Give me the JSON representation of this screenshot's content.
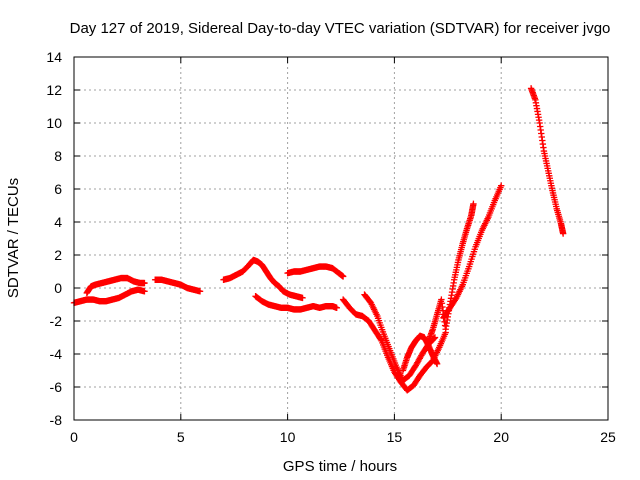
{
  "chart_data": {
    "type": "scatter",
    "title": "Day 127 of 2019, Sidereal Day-to-day VTEC variation (SDTVAR) for receiver jvgo",
    "xlabel": "GPS time / hours",
    "ylabel": "SDTVAR / TECUs",
    "xlim": [
      0,
      25
    ],
    "ylim": [
      -8,
      14
    ],
    "xticks": [
      "0",
      "5",
      "10",
      "15",
      "20",
      "25"
    ],
    "yticks": [
      "-8",
      "-6",
      "-4",
      "-2",
      "0",
      "2",
      "4",
      "6",
      "8",
      "10",
      "12",
      "14"
    ],
    "grid": true,
    "marker": "+",
    "color": "#ff0000",
    "series": [
      {
        "x": [
          0.0,
          0.3,
          0.6,
          0.9,
          1.2,
          1.5,
          1.8,
          2.1,
          2.4,
          2.7,
          3.0,
          3.3
        ],
        "y": [
          -0.9,
          -0.8,
          -0.7,
          -0.7,
          -0.8,
          -0.8,
          -0.7,
          -0.6,
          -0.4,
          -0.2,
          -0.1,
          -0.2
        ]
      },
      {
        "x": [
          0.6,
          0.8,
          1.0,
          1.3,
          1.6,
          1.9,
          2.2,
          2.5,
          2.8,
          3.1,
          3.3
        ],
        "y": [
          -0.3,
          0.1,
          0.2,
          0.3,
          0.4,
          0.5,
          0.6,
          0.6,
          0.4,
          0.3,
          0.3
        ]
      },
      {
        "x": [
          3.8,
          4.1,
          4.4,
          4.7,
          5.0,
          5.3,
          5.6,
          5.9
        ],
        "y": [
          0.5,
          0.5,
          0.4,
          0.3,
          0.2,
          0.0,
          -0.1,
          -0.2
        ]
      },
      {
        "x": [
          7.0,
          7.3,
          7.6,
          7.9,
          8.2,
          8.4,
          8.6,
          8.8,
          9.0,
          9.2,
          9.4,
          9.6,
          9.8,
          10.1,
          10.4,
          10.7
        ],
        "y": [
          0.5,
          0.6,
          0.8,
          1.0,
          1.4,
          1.7,
          1.6,
          1.4,
          1.0,
          0.6,
          0.3,
          0.1,
          -0.2,
          -0.4,
          -0.5,
          -0.6
        ]
      },
      {
        "x": [
          8.5,
          8.8,
          9.1,
          9.4,
          9.7,
          10.0,
          10.3,
          10.6,
          10.9,
          11.2,
          11.5,
          11.8,
          12.1,
          12.3
        ],
        "y": [
          -0.5,
          -0.8,
          -1.0,
          -1.1,
          -1.2,
          -1.2,
          -1.3,
          -1.3,
          -1.2,
          -1.1,
          -1.2,
          -1.1,
          -1.1,
          -1.2
        ]
      },
      {
        "x": [
          10.0,
          10.3,
          10.6,
          10.9,
          11.2,
          11.5,
          11.8,
          12.1,
          12.4,
          12.6
        ],
        "y": [
          0.9,
          1.0,
          1.0,
          1.1,
          1.2,
          1.3,
          1.3,
          1.2,
          0.9,
          0.7
        ]
      },
      {
        "x": [
          12.6,
          12.9,
          13.2,
          13.5,
          13.8,
          14.1,
          14.4,
          14.7,
          15.0,
          15.3,
          15.6,
          15.9,
          16.2,
          16.5,
          16.8,
          17.1,
          17.4
        ],
        "y": [
          -0.7,
          -1.2,
          -1.6,
          -1.7,
          -2.0,
          -2.6,
          -3.2,
          -4.2,
          -5.1,
          -5.7,
          -6.2,
          -5.9,
          -5.3,
          -4.8,
          -4.4,
          -3.6,
          -2.7
        ]
      },
      {
        "x": [
          13.6,
          13.9,
          14.2,
          14.5,
          14.8,
          15.1,
          15.4,
          15.7,
          16.0,
          16.3,
          16.6,
          16.9
        ],
        "y": [
          -0.4,
          -0.9,
          -1.7,
          -2.8,
          -3.8,
          -4.8,
          -5.6,
          -5.3,
          -4.7,
          -4.0,
          -3.4,
          -3.0
        ]
      },
      {
        "x": [
          15.4,
          15.6,
          15.8,
          16.0,
          16.2,
          16.4,
          16.6,
          16.8,
          17.0
        ],
        "y": [
          -5.0,
          -4.2,
          -3.6,
          -3.2,
          -2.9,
          -3.0,
          -3.5,
          -4.1,
          -4.6
        ]
      },
      {
        "x": [
          16.6,
          16.8,
          17.0,
          17.2,
          17.4,
          17.6,
          17.8,
          18.0,
          18.2,
          18.4,
          18.6,
          18.7
        ],
        "y": [
          -3.2,
          -2.5,
          -1.6,
          -0.7,
          -2.5,
          -1.0,
          0.5,
          1.7,
          2.7,
          3.6,
          4.4,
          5.1
        ]
      },
      {
        "x": [
          17.3,
          17.6,
          17.9,
          18.2,
          18.5,
          18.8,
          19.1,
          19.4,
          19.7,
          20.0
        ],
        "y": [
          -1.8,
          -1.2,
          -0.6,
          0.2,
          1.3,
          2.5,
          3.5,
          4.3,
          5.3,
          6.2
        ]
      },
      {
        "x": [
          21.4,
          21.6,
          21.8,
          22.0,
          22.2,
          22.4,
          22.6,
          22.8,
          22.9
        ],
        "y": [
          12.1,
          11.4,
          10.0,
          8.3,
          7.1,
          5.9,
          4.8,
          3.9,
          3.3
        ]
      }
    ]
  }
}
